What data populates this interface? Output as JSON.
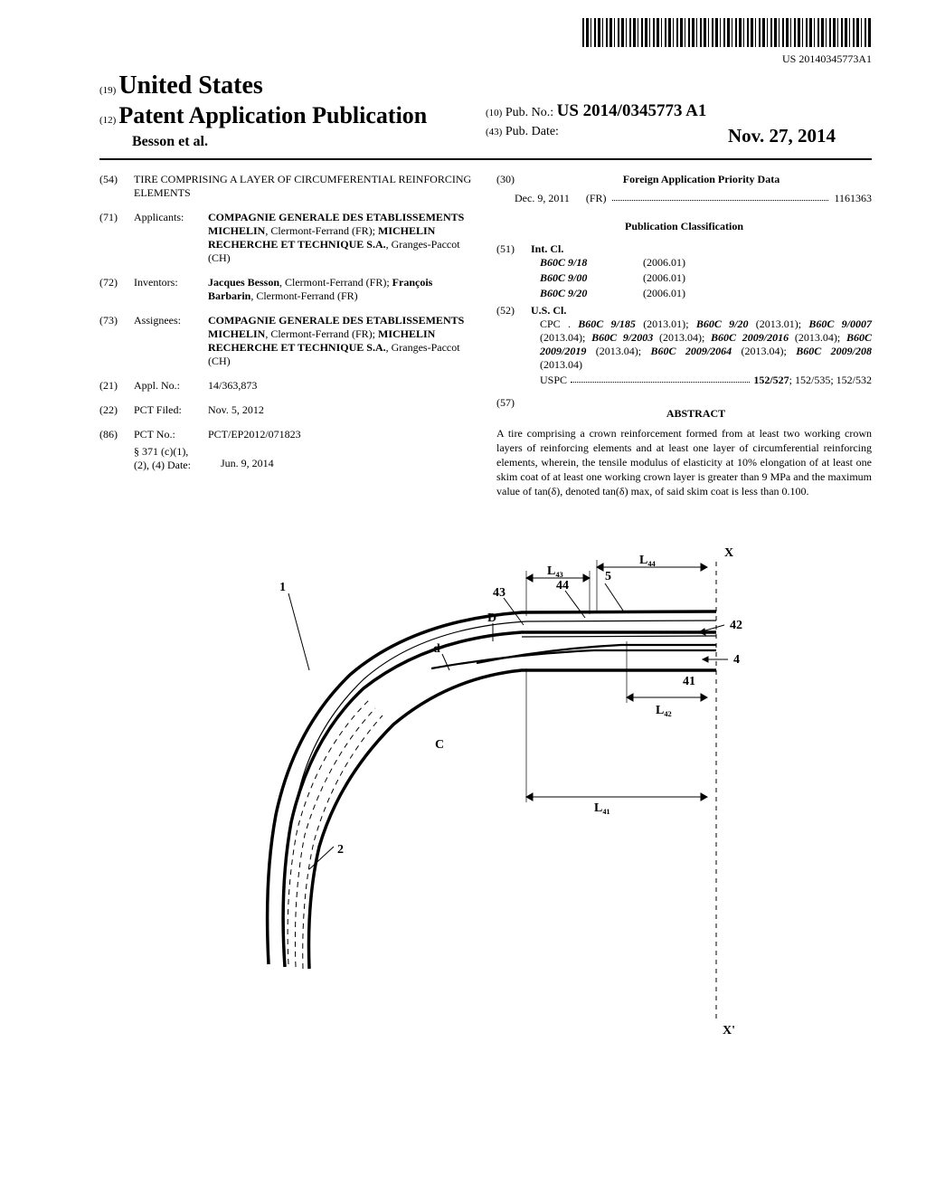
{
  "barcode_text": "US 20140345773A1",
  "header": {
    "country_num": "(19)",
    "country": "United States",
    "pub_num": "(12)",
    "pub_title": "Patent Application Publication",
    "authors": "Besson et al.",
    "pubno_num": "(10)",
    "pubno_label": "Pub. No.:",
    "pubno_val": "US 2014/0345773 A1",
    "pubdate_num": "(43)",
    "pubdate_label": "Pub. Date:",
    "pubdate_val": "Nov. 27, 2014"
  },
  "left": {
    "title_num": "(54)",
    "title_text": "TIRE COMPRISING A LAYER OF CIRCUMFERENTIAL REINFORCING ELEMENTS",
    "applicants_num": "(71)",
    "applicants_label": "Applicants:",
    "applicants_text1": "COMPAGNIE GENERALE DES ETABLISSEMENTS MICHELIN",
    "applicants_text1b": ", Clermont-Ferrand (FR); ",
    "applicants_text2": "MICHELIN RECHERCHE ET TECHNIQUE S.A.",
    "applicants_text2b": ", Granges-Paccot (CH)",
    "inventors_num": "(72)",
    "inventors_label": "Inventors:",
    "inventors_text1": "Jacques Besson",
    "inventors_text1b": ", Clermont-Ferrand (FR); ",
    "inventors_text2": "François Barbarin",
    "inventors_text2b": ", Clermont-Ferrand (FR)",
    "assignees_num": "(73)",
    "assignees_label": "Assignees:",
    "assignees_text1": "COMPAGNIE GENERALE DES ETABLISSEMENTS MICHELIN",
    "assignees_text1b": ", Clermont-Ferrand (FR); ",
    "assignees_text2": "MICHELIN RECHERCHE ET TECHNIQUE S.A.",
    "assignees_text2b": ", Granges-Paccot (CH)",
    "applno_num": "(21)",
    "applno_label": "Appl. No.:",
    "applno_val": "14/363,873",
    "pctfiled_num": "(22)",
    "pctfiled_label": "PCT Filed:",
    "pctfiled_val": "Nov. 5, 2012",
    "pctno_num": "(86)",
    "pctno_label": "PCT No.:",
    "pctno_val": "PCT/EP2012/071823",
    "s371_label": "§ 371 (c)(1),",
    "s371_label2": "(2), (4) Date:",
    "s371_val": "Jun. 9, 2014"
  },
  "right": {
    "foreign_num": "(30)",
    "foreign_title": "Foreign Application Priority Data",
    "foreign_date": "Dec. 9, 2011",
    "foreign_country": "(FR)",
    "foreign_appno": "1161363",
    "class_title": "Publication Classification",
    "intcl_num": "(51)",
    "intcl_label": "Int. Cl.",
    "intcl": [
      {
        "code": "B60C 9/18",
        "ver": "(2006.01)"
      },
      {
        "code": "B60C 9/00",
        "ver": "(2006.01)"
      },
      {
        "code": "B60C 9/20",
        "ver": "(2006.01)"
      }
    ],
    "uscl_num": "(52)",
    "uscl_label": "U.S. Cl.",
    "cpc_prefix": "CPC . ",
    "cpc_text": "B60C 9/185 (2013.01); B60C 9/20 (2013.01); B60C 9/0007 (2013.04); B60C 9/2003 (2013.04); B60C 2009/2016 (2013.04); B60C 2009/2019 (2013.04); B60C 2009/2064 (2013.04); B60C 2009/208 (2013.04)",
    "uspc_prefix": "USPC",
    "uspc_val": "152/527; 152/535; 152/532",
    "abstract_num": "(57)",
    "abstract_title": "ABSTRACT",
    "abstract_text": "A tire comprising a crown reinforcement formed from at least two working crown layers of reinforcing elements and at least one layer of circumferential reinforcing elements, wherein, the tensile modulus of elasticity at 10% elongation of at least one skim coat of at least one working crown layer is greater than 9 MPa and the maximum value of tan(δ), denoted tan(δ) max, of said skim coat is less than 0.100."
  },
  "figure": {
    "labels": {
      "X": "X",
      "Xp": "X'",
      "one": "1",
      "two": "2",
      "five": "5",
      "C": "C",
      "D": "D",
      "d": "d",
      "n4": "4",
      "n41": "41",
      "n42": "42",
      "n43": "43",
      "n44": "44",
      "L41": "L₄₁",
      "L42": "L₄₂",
      "L43": "L₄₃",
      "L44": "L₄₄"
    },
    "style": {
      "stroke": "#000000",
      "stroke_width_main": 3.5,
      "stroke_width_thin": 1,
      "label_fontsize": 14,
      "label_fontweight": "bold"
    }
  }
}
